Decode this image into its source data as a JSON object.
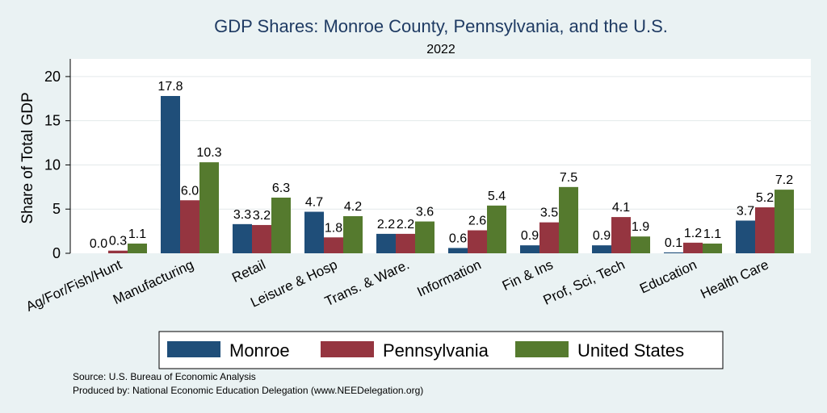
{
  "chart_data": {
    "type": "bar",
    "title": "GDP Shares: Monroe County, Pennsylvania, and the U.S.",
    "subtitle": "2022",
    "xlabel": "",
    "ylabel": "Share of Total GDP",
    "ylim": [
      0,
      22
    ],
    "yticks": [
      0,
      5,
      10,
      15,
      20
    ],
    "grid": true,
    "legend_position": "bottom",
    "categories": [
      "Ag/For/Fish/Hunt",
      "Manufacturing",
      "Retail",
      "Leisure & Hosp",
      "Trans. & Ware.",
      "Information",
      "Fin & Ins",
      "Prof, Sci, Tech",
      "Education",
      "Health Care"
    ],
    "series": [
      {
        "name": "Monroe",
        "color": "#1f4e79",
        "values": [
          0.0,
          17.8,
          3.3,
          4.7,
          2.2,
          0.6,
          0.9,
          0.9,
          0.1,
          3.7
        ]
      },
      {
        "name": "Pennsylvania",
        "color": "#953540",
        "values": [
          0.3,
          6.0,
          3.2,
          1.8,
          2.2,
          2.6,
          3.5,
          4.1,
          1.2,
          5.2
        ]
      },
      {
        "name": "United States",
        "color": "#557a2e",
        "values": [
          1.1,
          10.3,
          6.3,
          4.2,
          3.6,
          5.4,
          7.5,
          1.9,
          1.1,
          7.2
        ]
      }
    ]
  },
  "notes": {
    "source": "Source: U.S. Bureau of Economic Analysis",
    "produced": "Produced by: National Economic Education Delegation (www.NEEDelegation.org)"
  }
}
